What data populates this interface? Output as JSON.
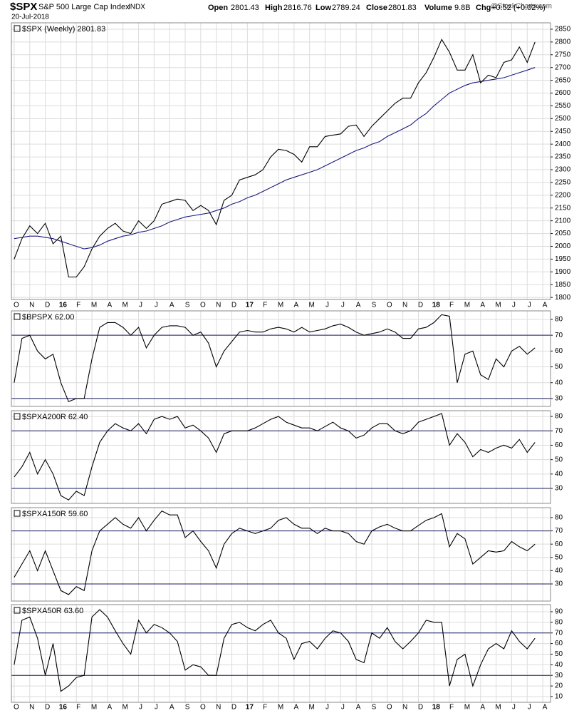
{
  "header": {
    "symbol": "$SPX",
    "name": "S&P 500 Large Cap Index",
    "exchange": "INDX",
    "date": "20-Jul-2018",
    "watermark": "@StockCharts.com",
    "stats": [
      {
        "label": "Open",
        "value": "2801.43"
      },
      {
        "label": "High",
        "value": "2816.76"
      },
      {
        "label": "Low",
        "value": "2789.24"
      },
      {
        "label": "Close",
        "value": "2801.83"
      },
      {
        "label": "Volume",
        "value": "9.8B"
      },
      {
        "label": "Chg",
        "value": "+0.52 (+0.02%)"
      }
    ]
  },
  "chart_data": [
    {
      "type": "line",
      "xlim": [
        -0.18,
        34.5
      ],
      "ylim": [
        1792,
        2875
      ],
      "yticks": [
        1800,
        1850,
        1900,
        1950,
        2000,
        2050,
        2100,
        2150,
        2200,
        2250,
        2300,
        2350,
        2400,
        2450,
        2500,
        2550,
        2600,
        2650,
        2700,
        2750,
        2800,
        2850
      ],
      "xticks": [
        {
          "value": 0,
          "label": "O"
        },
        {
          "value": 1,
          "label": "N"
        },
        {
          "value": 2,
          "label": "D"
        },
        {
          "value": 3,
          "label": "16"
        },
        {
          "value": 4,
          "label": "F"
        },
        {
          "value": 5,
          "label": "M"
        },
        {
          "value": 6,
          "label": "A"
        },
        {
          "value": 7,
          "label": "M"
        },
        {
          "value": 8,
          "label": "J"
        },
        {
          "value": 9,
          "label": "J"
        },
        {
          "value": 10,
          "label": "A"
        },
        {
          "value": 11,
          "label": "S"
        },
        {
          "value": 12,
          "label": "O"
        },
        {
          "value": 13,
          "label": "N"
        },
        {
          "value": 14,
          "label": "D"
        },
        {
          "value": 15,
          "label": "17"
        },
        {
          "value": 16,
          "label": "F"
        },
        {
          "value": 17,
          "label": "M"
        },
        {
          "value": 18,
          "label": "A"
        },
        {
          "value": 19,
          "label": "M"
        },
        {
          "value": 20,
          "label": "J"
        },
        {
          "value": 21,
          "label": "J"
        },
        {
          "value": 22,
          "label": "A"
        },
        {
          "value": 23,
          "label": "S"
        },
        {
          "value": 24,
          "label": "O"
        },
        {
          "value": 25,
          "label": "N"
        },
        {
          "value": 26,
          "label": "D"
        },
        {
          "value": 27,
          "label": "18"
        },
        {
          "value": 28,
          "label": "F"
        },
        {
          "value": 29,
          "label": "M"
        },
        {
          "value": 30,
          "label": "A"
        },
        {
          "value": 31,
          "label": "M"
        },
        {
          "value": 32,
          "label": "J"
        },
        {
          "value": 33,
          "label": "J"
        },
        {
          "value": 34,
          "label": "A"
        }
      ],
      "x": [
        0,
        0.5,
        1,
        1.5,
        2,
        2.5,
        3,
        3.5,
        4,
        4.5,
        5,
        5.5,
        6,
        6.5,
        7,
        7.5,
        8,
        8.5,
        9,
        9.5,
        10,
        10.5,
        11,
        11.5,
        12,
        12.5,
        13,
        13.5,
        14,
        14.5,
        15,
        15.5,
        16,
        16.5,
        17,
        17.5,
        18,
        18.5,
        19,
        19.5,
        20,
        20.5,
        21,
        21.5,
        22,
        22.5,
        23,
        23.5,
        24,
        24.5,
        25,
        25.5,
        26,
        26.5,
        27,
        27.5,
        28,
        28.5,
        29,
        29.5,
        30,
        30.5,
        31,
        31.5,
        32,
        32.5,
        33,
        33.5
      ],
      "series": [
        {
          "name": "$SPX (Weekly) 2801.83",
          "color": "#000000",
          "values": [
            1950,
            2030,
            2080,
            2050,
            2090,
            2010,
            2040,
            1880,
            1880,
            1920,
            1990,
            2040,
            2070,
            2090,
            2060,
            2050,
            2100,
            2070,
            2100,
            2165,
            2175,
            2185,
            2180,
            2140,
            2160,
            2140,
            2085,
            2180,
            2200,
            2260,
            2270,
            2280,
            2300,
            2350,
            2380,
            2375,
            2360,
            2330,
            2390,
            2390,
            2430,
            2435,
            2440,
            2470,
            2475,
            2430,
            2470,
            2500,
            2530,
            2560,
            2580,
            2580,
            2640,
            2680,
            2740,
            2810,
            2760,
            2690,
            2690,
            2750,
            2640,
            2670,
            2660,
            2720,
            2730,
            2780,
            2720,
            2800
          ]
        },
        {
          "color": "#1a1a80",
          "values": [
            2030,
            2035,
            2040,
            2040,
            2035,
            2030,
            2020,
            2010,
            2000,
            1990,
            1995,
            2005,
            2020,
            2030,
            2040,
            2045,
            2055,
            2060,
            2070,
            2080,
            2095,
            2105,
            2115,
            2120,
            2125,
            2130,
            2140,
            2150,
            2165,
            2175,
            2190,
            2200,
            2215,
            2230,
            2245,
            2260,
            2270,
            2280,
            2290,
            2300,
            2315,
            2330,
            2345,
            2360,
            2375,
            2385,
            2400,
            2410,
            2430,
            2445,
            2460,
            2475,
            2500,
            2520,
            2550,
            2575,
            2600,
            2615,
            2630,
            2640,
            2645,
            2650,
            2655,
            2660,
            2670,
            2680,
            2690,
            2700
          ]
        }
      ]
    },
    {
      "type": "line",
      "xlim": [
        -0.18,
        34.5
      ],
      "ylim": [
        25,
        85.4
      ],
      "yticks": [
        30,
        40,
        50,
        60,
        70,
        80
      ],
      "hlines": [
        70,
        30
      ],
      "x": [
        0,
        0.5,
        1,
        1.5,
        2,
        2.5,
        3,
        3.5,
        4,
        4.5,
        5,
        5.5,
        6,
        6.5,
        7,
        7.5,
        8,
        8.5,
        9,
        9.5,
        10,
        10.5,
        11,
        11.5,
        12,
        12.5,
        13,
        13.5,
        14,
        14.5,
        15,
        15.5,
        16,
        16.5,
        17,
        17.5,
        18,
        18.5,
        19,
        19.5,
        20,
        20.5,
        21,
        21.5,
        22,
        22.5,
        23,
        23.5,
        24,
        24.5,
        25,
        25.5,
        26,
        26.5,
        27,
        27.5,
        28,
        28.5,
        29,
        29.5,
        30,
        30.5,
        31,
        31.5,
        32,
        32.5,
        33,
        33.5
      ],
      "series": [
        {
          "name": "$BPSPX 62.00",
          "color": "#000000",
          "values": [
            40,
            68,
            70,
            60,
            55,
            58,
            40,
            28,
            30,
            30,
            55,
            75,
            78,
            78,
            75,
            70,
            75,
            62,
            70,
            75,
            76,
            76,
            75,
            70,
            72,
            65,
            50,
            60,
            66,
            72,
            73,
            72,
            72,
            74,
            75,
            74,
            72,
            75,
            72,
            73,
            74,
            76,
            77,
            75,
            72,
            70,
            71,
            72,
            74,
            72,
            68,
            68,
            74,
            75,
            78,
            83,
            82,
            40,
            58,
            60,
            45,
            42,
            55,
            50,
            60,
            63,
            58,
            62
          ]
        }
      ]
    },
    {
      "type": "line",
      "xlim": [
        -0.18,
        34.5
      ],
      "ylim": [
        19.6,
        84
      ],
      "yticks": [
        30,
        40,
        50,
        60,
        70,
        80
      ],
      "hlines": [
        70,
        30
      ],
      "x": [
        0,
        0.5,
        1,
        1.5,
        2,
        2.5,
        3,
        3.5,
        4,
        4.5,
        5,
        5.5,
        6,
        6.5,
        7,
        7.5,
        8,
        8.5,
        9,
        9.5,
        10,
        10.5,
        11,
        11.5,
        12,
        12.5,
        13,
        13.5,
        14,
        14.5,
        15,
        15.5,
        16,
        16.5,
        17,
        17.5,
        18,
        18.5,
        19,
        19.5,
        20,
        20.5,
        21,
        21.5,
        22,
        22.5,
        23,
        23.5,
        24,
        24.5,
        25,
        25.5,
        26,
        26.5,
        27,
        27.5,
        28,
        28.5,
        29,
        29.5,
        30,
        30.5,
        31,
        31.5,
        32,
        32.5,
        33,
        33.5
      ],
      "series": [
        {
          "name": "$SPXA200R 62.40",
          "color": "#000000",
          "values": [
            38,
            45,
            55,
            40,
            50,
            40,
            25,
            22,
            28,
            25,
            45,
            62,
            70,
            75,
            72,
            70,
            75,
            68,
            78,
            80,
            78,
            80,
            72,
            74,
            70,
            65,
            55,
            68,
            70,
            70,
            70,
            72,
            75,
            78,
            80,
            76,
            74,
            72,
            72,
            70,
            73,
            76,
            72,
            70,
            65,
            67,
            72,
            75,
            75,
            70,
            68,
            70,
            76,
            78,
            80,
            82,
            60,
            68,
            62,
            52,
            57,
            55,
            58,
            60,
            58,
            64,
            55,
            62
          ]
        }
      ]
    },
    {
      "type": "line",
      "xlim": [
        -0.18,
        34.5
      ],
      "ylim": [
        17.1,
        87.5
      ],
      "yticks": [
        30,
        40,
        50,
        60,
        70,
        80
      ],
      "hlines": [
        70,
        30
      ],
      "x": [
        0,
        0.5,
        1,
        1.5,
        2,
        2.5,
        3,
        3.5,
        4,
        4.5,
        5,
        5.5,
        6,
        6.5,
        7,
        7.5,
        8,
        8.5,
        9,
        9.5,
        10,
        10.5,
        11,
        11.5,
        12,
        12.5,
        13,
        13.5,
        14,
        14.5,
        15,
        15.5,
        16,
        16.5,
        17,
        17.5,
        18,
        18.5,
        19,
        19.5,
        20,
        20.5,
        21,
        21.5,
        22,
        22.5,
        23,
        23.5,
        24,
        24.5,
        25,
        25.5,
        26,
        26.5,
        27,
        27.5,
        28,
        28.5,
        29,
        29.5,
        30,
        30.5,
        31,
        31.5,
        32,
        32.5,
        33,
        33.5
      ],
      "series": [
        {
          "name": "$SPXA150R 59.60",
          "color": "#000000",
          "values": [
            35,
            45,
            55,
            40,
            55,
            40,
            25,
            22,
            28,
            25,
            55,
            70,
            75,
            80,
            75,
            72,
            80,
            70,
            78,
            85,
            82,
            82,
            65,
            70,
            62,
            55,
            42,
            60,
            68,
            72,
            70,
            68,
            70,
            72,
            78,
            80,
            75,
            72,
            72,
            68,
            72,
            70,
            70,
            68,
            62,
            60,
            70,
            73,
            75,
            72,
            70,
            70,
            74,
            78,
            80,
            83,
            58,
            68,
            64,
            45,
            50,
            55,
            54,
            55,
            62,
            58,
            55,
            60
          ]
        }
      ]
    },
    {
      "type": "line",
      "xlim": [
        -0.18,
        34.5
      ],
      "ylim": [
        4.6,
        96.7
      ],
      "yticks": [
        10,
        20,
        30,
        40,
        50,
        60,
        70,
        80,
        90
      ],
      "hlines": [
        70,
        30
      ],
      "xticks": [
        {
          "value": 0,
          "label": "O"
        },
        {
          "value": 1,
          "label": "N"
        },
        {
          "value": 2,
          "label": "D"
        },
        {
          "value": 3,
          "label": "16"
        },
        {
          "value": 4,
          "label": "F"
        },
        {
          "value": 5,
          "label": "M"
        },
        {
          "value": 6,
          "label": "A"
        },
        {
          "value": 7,
          "label": "M"
        },
        {
          "value": 8,
          "label": "J"
        },
        {
          "value": 9,
          "label": "J"
        },
        {
          "value": 10,
          "label": "A"
        },
        {
          "value": 11,
          "label": "S"
        },
        {
          "value": 12,
          "label": "O"
        },
        {
          "value": 13,
          "label": "N"
        },
        {
          "value": 14,
          "label": "D"
        },
        {
          "value": 15,
          "label": "17"
        },
        {
          "value": 16,
          "label": "F"
        },
        {
          "value": 17,
          "label": "M"
        },
        {
          "value": 18,
          "label": "A"
        },
        {
          "value": 19,
          "label": "M"
        },
        {
          "value": 20,
          "label": "J"
        },
        {
          "value": 21,
          "label": "J"
        },
        {
          "value": 22,
          "label": "A"
        },
        {
          "value": 23,
          "label": "S"
        },
        {
          "value": 24,
          "label": "O"
        },
        {
          "value": 25,
          "label": "N"
        },
        {
          "value": 26,
          "label": "D"
        },
        {
          "value": 27,
          "label": "18"
        },
        {
          "value": 28,
          "label": "F"
        },
        {
          "value": 29,
          "label": "M"
        },
        {
          "value": 30,
          "label": "A"
        },
        {
          "value": 31,
          "label": "M"
        },
        {
          "value": 32,
          "label": "J"
        },
        {
          "value": 33,
          "label": "J"
        },
        {
          "value": 34,
          "label": "A"
        }
      ],
      "x": [
        0,
        0.5,
        1,
        1.5,
        2,
        2.5,
        3,
        3.5,
        4,
        4.5,
        5,
        5.5,
        6,
        6.5,
        7,
        7.5,
        8,
        8.5,
        9,
        9.5,
        10,
        10.5,
        11,
        11.5,
        12,
        12.5,
        13,
        13.5,
        14,
        14.5,
        15,
        15.5,
        16,
        16.5,
        17,
        17.5,
        18,
        18.5,
        19,
        19.5,
        20,
        20.5,
        21,
        21.5,
        22,
        22.5,
        23,
        23.5,
        24,
        24.5,
        25,
        25.5,
        26,
        26.5,
        27,
        27.5,
        28,
        28.5,
        29,
        29.5,
        30,
        30.5,
        31,
        31.5,
        32,
        32.5,
        33,
        33.5
      ],
      "series": [
        {
          "name": "$SPXA50R 63.60",
          "color": "#000000",
          "values": [
            40,
            82,
            85,
            65,
            30,
            60,
            15,
            20,
            28,
            30,
            85,
            92,
            85,
            72,
            60,
            50,
            82,
            70,
            78,
            75,
            70,
            62,
            35,
            40,
            38,
            30,
            30,
            65,
            78,
            80,
            75,
            72,
            78,
            82,
            70,
            65,
            45,
            60,
            62,
            55,
            65,
            72,
            70,
            62,
            45,
            42,
            70,
            65,
            75,
            62,
            55,
            62,
            70,
            82,
            80,
            80,
            20,
            45,
            50,
            20,
            40,
            55,
            60,
            55,
            72,
            62,
            55,
            65
          ]
        }
      ]
    }
  ]
}
